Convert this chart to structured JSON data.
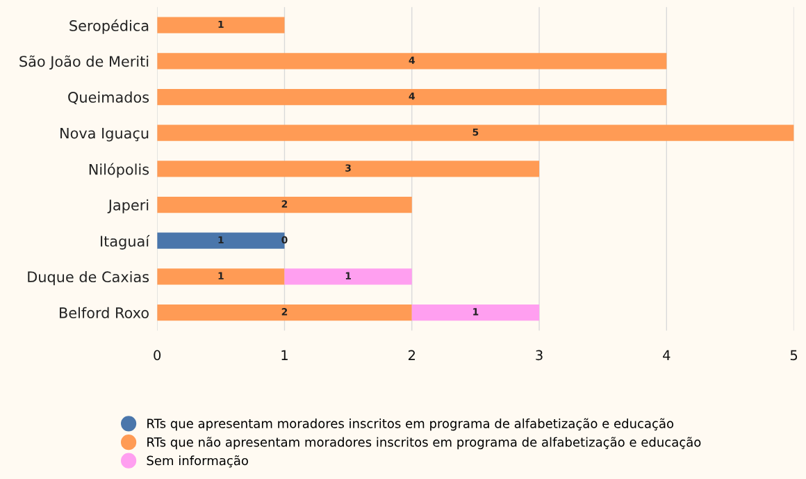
{
  "chart_data": {
    "type": "bar",
    "orientation": "horizontal",
    "stacked": true,
    "categories": [
      "Seropédica",
      "São João de Meriti",
      "Queimados",
      "Nova Iguaçu",
      "Nilópolis",
      "Japeri",
      "Itaguaí",
      "Duque de Caxias",
      "Belford Roxo"
    ],
    "series": [
      {
        "name": "RTs que apresentam moradores inscritos em programa de alfabetização e educação",
        "color": "#4a76ab",
        "values": [
          0,
          0,
          0,
          0,
          0,
          0,
          1,
          0,
          0
        ],
        "value_labels": [
          null,
          null,
          null,
          null,
          null,
          null,
          "1",
          null,
          null
        ]
      },
      {
        "name": "RTs que não apresentam moradores inscritos em programa de alfabetização e educação",
        "color": "#ff9b55",
        "values": [
          1,
          4,
          4,
          5,
          3,
          2,
          0,
          1,
          2
        ],
        "value_labels": [
          "1",
          "4",
          "4",
          "5",
          "3",
          "2",
          "0",
          "1",
          "2"
        ]
      },
      {
        "name": "Sem informação",
        "color": "#ff9ff0",
        "values": [
          0,
          0,
          0,
          0,
          0,
          0,
          0,
          1,
          1
        ],
        "value_labels": [
          null,
          null,
          null,
          null,
          null,
          null,
          null,
          "1",
          "1"
        ]
      }
    ],
    "xlim": [
      0,
      5
    ],
    "xticks": [
      0,
      1,
      2,
      3,
      4,
      5
    ],
    "grid": "x",
    "legend": "bottom"
  }
}
